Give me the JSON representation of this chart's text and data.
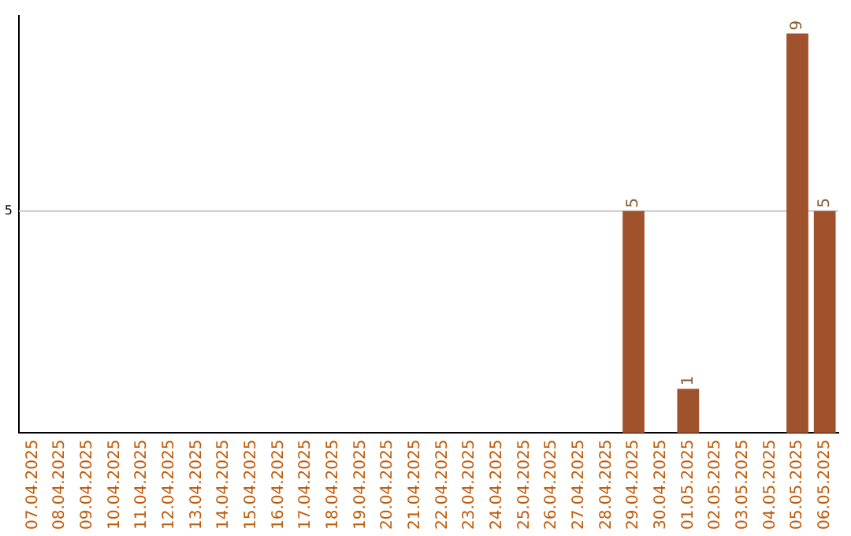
{
  "chart_data": {
    "type": "bar",
    "categories": [
      "07.04.2025",
      "08.04.2025",
      "09.04.2025",
      "10.04.2025",
      "11.04.2025",
      "12.04.2025",
      "13.04.2025",
      "14.04.2025",
      "15.04.2025",
      "16.04.2025",
      "17.04.2025",
      "18.04.2025",
      "19.04.2025",
      "20.04.2025",
      "21.04.2025",
      "22.04.2025",
      "23.04.2025",
      "24.04.2025",
      "25.04.2025",
      "26.04.2025",
      "27.04.2025",
      "28.04.2025",
      "29.04.2025",
      "30.04.2025",
      "01.05.2025",
      "02.05.2025",
      "03.05.2025",
      "04.05.2025",
      "05.05.2025",
      "06.05.2025"
    ],
    "values": [
      null,
      null,
      null,
      null,
      null,
      null,
      null,
      null,
      null,
      null,
      null,
      null,
      null,
      null,
      null,
      null,
      null,
      null,
      null,
      null,
      null,
      null,
      5,
      null,
      1,
      null,
      null,
      null,
      9,
      5
    ],
    "ylim": [
      0,
      9.4
    ],
    "value_labels": [
      null,
      null,
      null,
      null,
      null,
      null,
      null,
      null,
      null,
      null,
      null,
      null,
      null,
      null,
      null,
      null,
      null,
      null,
      null,
      null,
      null,
      null,
      "5",
      null,
      "1",
      null,
      null,
      null,
      "9",
      "5"
    ],
    "color": "#a0522d",
    "ref_lines": [
      {
        "axis": "y",
        "value": 5,
        "label": "5",
        "color": "#c8c8c8"
      }
    ],
    "legend": false
  }
}
